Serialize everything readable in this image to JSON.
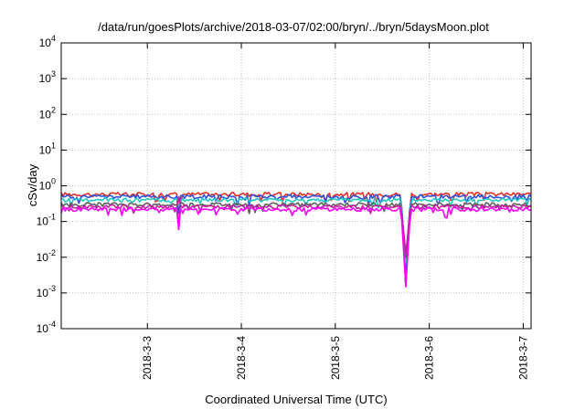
{
  "chart_data": {
    "type": "line",
    "title": "/data/run/goesPlots/archive/2018-03-07/02:00/bryn/../bryn/5daysMoon.plot",
    "xlabel": "Coordinated Universal Time (UTC)",
    "ylabel": "cSv/day",
    "yscale": "log",
    "ylim": [
      0.0001,
      10000
    ],
    "y_ticks": [
      {
        "value": 0.0001,
        "base": "10",
        "exp": "-4"
      },
      {
        "value": 0.001,
        "base": "10",
        "exp": "-3"
      },
      {
        "value": 0.01,
        "base": "10",
        "exp": "-2"
      },
      {
        "value": 0.1,
        "base": "10",
        "exp": "-1"
      },
      {
        "value": 1,
        "base": "10",
        "exp": "0"
      },
      {
        "value": 10,
        "base": "10",
        "exp": "1"
      },
      {
        "value": 100,
        "base": "10",
        "exp": "2"
      },
      {
        "value": 1000,
        "base": "10",
        "exp": "3"
      },
      {
        "value": 10000,
        "base": "10",
        "exp": "4"
      }
    ],
    "x_range_days": [
      "2018-03-02T02:00",
      "2018-03-07T02:00"
    ],
    "x_ticks": [
      "2018-3-3",
      "2018-3-4",
      "2018-3-5",
      "2018-3-6",
      "2018-3-7"
    ],
    "grid": true,
    "legend": "none",
    "series": [
      {
        "color": "#e0302a",
        "baseline": 0.58
      },
      {
        "color": "#3050e0",
        "baseline": 0.5
      },
      {
        "color": "#20c8c0",
        "baseline": 0.4
      },
      {
        "color": "#606060",
        "baseline": 0.3
      },
      {
        "color": "#c020a0",
        "baseline": 0.26
      },
      {
        "color": "#ff00ff",
        "baseline": 0.22
      }
    ],
    "notable_dips": [
      {
        "time": "2018-03-03T08:00",
        "min_value": 0.06
      },
      {
        "time": "2018-03-05T18:00",
        "min_value": 0.0015
      }
    ]
  }
}
